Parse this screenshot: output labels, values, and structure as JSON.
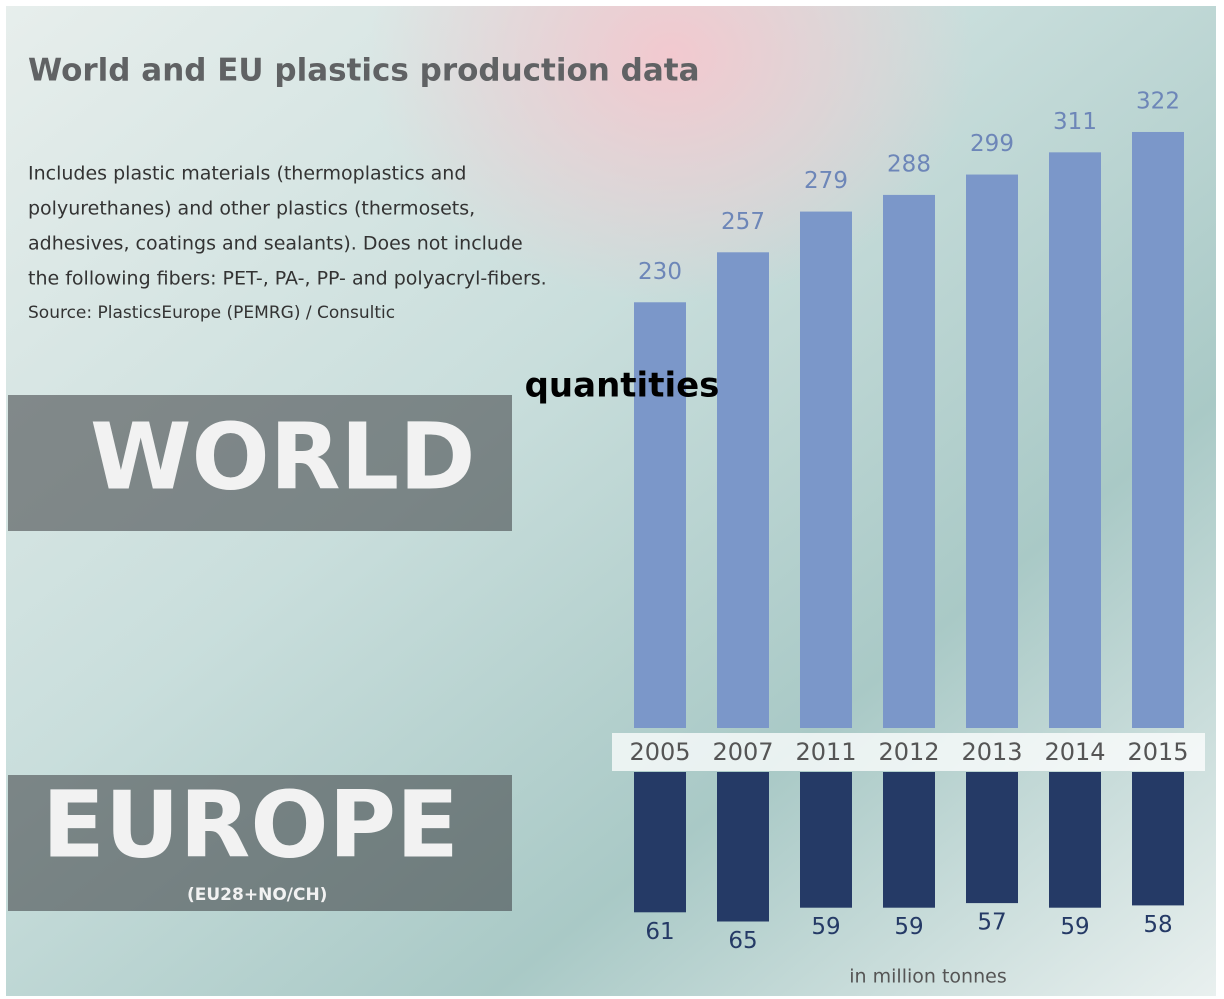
{
  "chart_data": {
    "type": "bar",
    "title": "World and EU plastics production data",
    "description": [
      "Includes plastic materials (thermoplastics and",
      "polyurethanes) and other plastics (thermosets,",
      "adhesives, coatings and sealants). Does not include",
      "the following fibers: PET-, PA-, PP- and polyacryl-fibers."
    ],
    "source": "Source: PlasticsEurope (PEMRG) / Consultic",
    "annotation": "quantities",
    "europe_note": "(EU28+NO/CH)",
    "unit_label": "in million tonnes",
    "categories": [
      "2005",
      "2007",
      "2011",
      "2012",
      "2013",
      "2014",
      "2015"
    ],
    "series": [
      {
        "name": "WORLD",
        "color": "#7b97c9",
        "values": [
          230,
          257,
          279,
          288,
          299,
          311,
          322
        ]
      },
      {
        "name": "EUROPE",
        "color": "#253a66",
        "values": [
          61,
          65,
          59,
          59,
          57,
          59,
          58
        ]
      }
    ]
  }
}
